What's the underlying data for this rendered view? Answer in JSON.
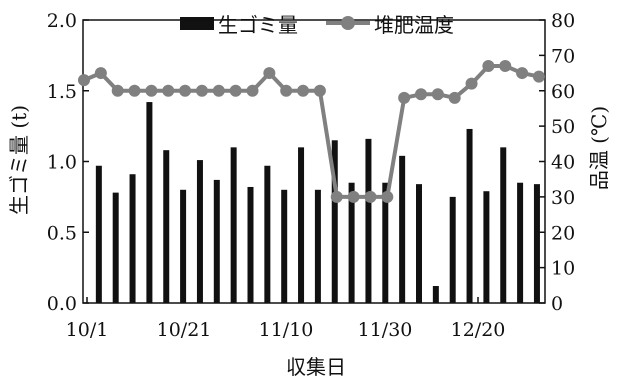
{
  "chart_data": {
    "type": "bar+line",
    "xlabel": "収集日",
    "ylabel_left": "生ゴミ量 (t)",
    "ylabel_right": "品温 (℃)",
    "x_tick_labels": [
      "10/1",
      "10/21",
      "11/10",
      "11/30",
      "12/20"
    ],
    "ylim_left": [
      0,
      2.0
    ],
    "yticks_left": [
      "0.0",
      "0.5",
      "1.0",
      "1.5",
      "2.0"
    ],
    "ylim_right": [
      0,
      80
    ],
    "yticks_right": [
      "0",
      "10",
      "20",
      "30",
      "40",
      "50",
      "60",
      "70",
      "80"
    ],
    "legend_position": "top",
    "series": [
      {
        "name": "生ゴミ量",
        "type": "bar",
        "axis": "left",
        "color": "#111111",
        "values": [
          0.97,
          0.78,
          0.91,
          1.42,
          1.08,
          0.8,
          1.01,
          0.87,
          1.1,
          0.82,
          0.97,
          0.8,
          1.1,
          0.8,
          1.15,
          0.85,
          1.16,
          0.85,
          1.04,
          0.84,
          0.12,
          0.75,
          1.23,
          0.79,
          1.1,
          0.85,
          0.84
        ]
      },
      {
        "name": "堆肥温度",
        "type": "line",
        "axis": "right",
        "color": "#808080",
        "values": [
          63,
          65,
          60,
          60,
          60,
          60,
          60,
          60,
          60,
          60,
          60,
          65,
          60,
          60,
          60,
          30,
          30,
          30,
          30,
          58,
          59,
          59,
          58,
          62,
          67,
          67,
          65,
          64
        ]
      }
    ]
  }
}
